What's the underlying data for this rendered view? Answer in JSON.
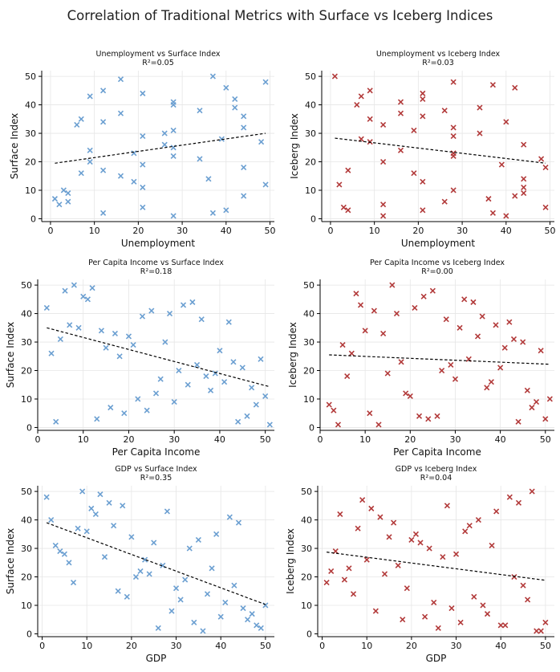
{
  "title": "Correlation of Traditional Metrics with Surface vs Iceberg Indices",
  "colors": {
    "surface": "#6b9fd1",
    "iceberg": "#b23a3a",
    "trend": "#000000",
    "grid": "#e6e6e6"
  },
  "chart_data": [
    {
      "type": "scatter",
      "title": "Unemployment vs Surface Index",
      "subtitle": "R²=0.05",
      "xlabel": "Unemployment",
      "ylabel": "Surface Index",
      "xlim": [
        -2,
        51
      ],
      "ylim": [
        -1,
        52
      ],
      "xticks": [
        0,
        10,
        20,
        30,
        40,
        50
      ],
      "yticks": [
        0,
        10,
        20,
        30,
        40,
        50
      ],
      "series_color": "surface",
      "trend": [
        [
          1,
          19.5
        ],
        [
          49,
          30
        ]
      ],
      "points": [
        [
          1,
          7
        ],
        [
          2,
          5
        ],
        [
          3,
          10
        ],
        [
          4,
          9
        ],
        [
          4,
          6
        ],
        [
          6,
          33
        ],
        [
          7,
          35
        ],
        [
          7,
          16
        ],
        [
          9,
          43
        ],
        [
          9,
          24
        ],
        [
          9,
          20
        ],
        [
          12,
          45
        ],
        [
          12,
          34
        ],
        [
          12,
          17
        ],
        [
          12,
          2
        ],
        [
          16,
          49
        ],
        [
          16,
          37
        ],
        [
          16,
          15
        ],
        [
          19,
          13
        ],
        [
          19,
          23
        ],
        [
          21,
          44
        ],
        [
          21,
          29
        ],
        [
          21,
          19
        ],
        [
          21,
          11
        ],
        [
          21,
          4
        ],
        [
          26,
          30
        ],
        [
          26,
          26
        ],
        [
          28,
          41
        ],
        [
          28,
          40
        ],
        [
          28,
          31
        ],
        [
          28,
          25
        ],
        [
          28,
          22
        ],
        [
          28,
          1
        ],
        [
          34,
          38
        ],
        [
          34,
          21
        ],
        [
          36,
          14
        ],
        [
          37,
          50
        ],
        [
          37,
          2
        ],
        [
          39,
          28
        ],
        [
          40,
          46
        ],
        [
          40,
          3
        ],
        [
          42,
          42
        ],
        [
          42,
          39
        ],
        [
          44,
          36
        ],
        [
          44,
          32
        ],
        [
          44,
          18
        ],
        [
          44,
          8
        ],
        [
          48,
          27
        ],
        [
          49,
          48
        ],
        [
          49,
          12
        ]
      ]
    },
    {
      "type": "scatter",
      "title": "Unemployment vs Iceberg Index",
      "subtitle": "R²=0.03",
      "xlabel": "Unemployment",
      "ylabel": "Iceberg Index",
      "xlim": [
        -2,
        51
      ],
      "ylim": [
        -1,
        52
      ],
      "xticks": [
        0,
        10,
        20,
        30,
        40,
        50
      ],
      "yticks": [
        0,
        10,
        20,
        30,
        40,
        50
      ],
      "series_color": "iceberg",
      "trend": [
        [
          1,
          28.3
        ],
        [
          49,
          19.5
        ]
      ],
      "points": [
        [
          1,
          50
        ],
        [
          2,
          12
        ],
        [
          3,
          4
        ],
        [
          4,
          3
        ],
        [
          4,
          17
        ],
        [
          6,
          40
        ],
        [
          7,
          43
        ],
        [
          7,
          28
        ],
        [
          9,
          45
        ],
        [
          9,
          35
        ],
        [
          9,
          27
        ],
        [
          12,
          33
        ],
        [
          12,
          20
        ],
        [
          12,
          5
        ],
        [
          12,
          1
        ],
        [
          16,
          41
        ],
        [
          16,
          37
        ],
        [
          16,
          24
        ],
        [
          19,
          31
        ],
        [
          19,
          16
        ],
        [
          21,
          44
        ],
        [
          21,
          42
        ],
        [
          21,
          36
        ],
        [
          21,
          13
        ],
        [
          21,
          3
        ],
        [
          26,
          38
        ],
        [
          26,
          6
        ],
        [
          28,
          48
        ],
        [
          28,
          32
        ],
        [
          28,
          29
        ],
        [
          28,
          23
        ],
        [
          28,
          22
        ],
        [
          28,
          10
        ],
        [
          34,
          39
        ],
        [
          34,
          30
        ],
        [
          36,
          7
        ],
        [
          37,
          47
        ],
        [
          37,
          2
        ],
        [
          39,
          19
        ],
        [
          40,
          34
        ],
        [
          40,
          1
        ],
        [
          42,
          46
        ],
        [
          42,
          8
        ],
        [
          44,
          26
        ],
        [
          44,
          14
        ],
        [
          44,
          11
        ],
        [
          44,
          9
        ],
        [
          48,
          21
        ],
        [
          49,
          18
        ],
        [
          49,
          4
        ]
      ]
    },
    {
      "type": "scatter",
      "title": "Per Capita Income vs Surface Index",
      "subtitle": "R²=0.18",
      "xlabel": "Per Capita Income",
      "ylabel": "Surface Index",
      "xlim": [
        0,
        52
      ],
      "ylim": [
        -1,
        52
      ],
      "xticks": [
        0,
        10,
        20,
        30,
        40,
        50
      ],
      "yticks": [
        0,
        10,
        20,
        30,
        40,
        50
      ],
      "series_color": "surface",
      "trend": [
        [
          2,
          35
        ],
        [
          51,
          14.3
        ]
      ],
      "points": [
        [
          2,
          42
        ],
        [
          3,
          26
        ],
        [
          4,
          2
        ],
        [
          5,
          31
        ],
        [
          6,
          48
        ],
        [
          7,
          36
        ],
        [
          8,
          50
        ],
        [
          9,
          35
        ],
        [
          10,
          46
        ],
        [
          11,
          45
        ],
        [
          12,
          49
        ],
        [
          13,
          3
        ],
        [
          14,
          34
        ],
        [
          15,
          28
        ],
        [
          16,
          7
        ],
        [
          17,
          33
        ],
        [
          18,
          25
        ],
        [
          19,
          5
        ],
        [
          20,
          32
        ],
        [
          21,
          29
        ],
        [
          22,
          10
        ],
        [
          23,
          39
        ],
        [
          24,
          6
        ],
        [
          25,
          41
        ],
        [
          26,
          12
        ],
        [
          27,
          17
        ],
        [
          28,
          30
        ],
        [
          29,
          40
        ],
        [
          30,
          9
        ],
        [
          31,
          20
        ],
        [
          32,
          43
        ],
        [
          33,
          15
        ],
        [
          34,
          44
        ],
        [
          35,
          22
        ],
        [
          36,
          38
        ],
        [
          37,
          18
        ],
        [
          38,
          13
        ],
        [
          39,
          19
        ],
        [
          40,
          27
        ],
        [
          41,
          16
        ],
        [
          42,
          37
        ],
        [
          43,
          23
        ],
        [
          44,
          2
        ],
        [
          45,
          21
        ],
        [
          46,
          4
        ],
        [
          47,
          14
        ],
        [
          48,
          8
        ],
        [
          49,
          24
        ],
        [
          50,
          11
        ],
        [
          51,
          1
        ]
      ]
    },
    {
      "type": "scatter",
      "title": "Per Capita Income vs Iceberg Index",
      "subtitle": "R²=0.00",
      "xlabel": "Per Capita Income",
      "ylabel": "Iceberg Index",
      "xlim": [
        0,
        52
      ],
      "ylim": [
        -1,
        52
      ],
      "xticks": [
        0,
        10,
        20,
        30,
        40,
        50
      ],
      "yticks": [
        0,
        10,
        20,
        30,
        40,
        50
      ],
      "series_color": "iceberg",
      "trend": [
        [
          2,
          25.5
        ],
        [
          51,
          22.2
        ]
      ],
      "points": [
        [
          2,
          8
        ],
        [
          3,
          6
        ],
        [
          4,
          1
        ],
        [
          5,
          29
        ],
        [
          6,
          18
        ],
        [
          7,
          26
        ],
        [
          8,
          47
        ],
        [
          9,
          43
        ],
        [
          10,
          34
        ],
        [
          11,
          5
        ],
        [
          12,
          41
        ],
        [
          13,
          1
        ],
        [
          14,
          33
        ],
        [
          15,
          19
        ],
        [
          16,
          50
        ],
        [
          17,
          40
        ],
        [
          18,
          23
        ],
        [
          19,
          12
        ],
        [
          20,
          11
        ],
        [
          21,
          42
        ],
        [
          22,
          4
        ],
        [
          23,
          46
        ],
        [
          24,
          3
        ],
        [
          25,
          48
        ],
        [
          26,
          4
        ],
        [
          27,
          20
        ],
        [
          28,
          38
        ],
        [
          29,
          22
        ],
        [
          30,
          17
        ],
        [
          31,
          35
        ],
        [
          32,
          45
        ],
        [
          33,
          24
        ],
        [
          34,
          44
        ],
        [
          35,
          32
        ],
        [
          36,
          39
        ],
        [
          37,
          14
        ],
        [
          38,
          16
        ],
        [
          39,
          36
        ],
        [
          40,
          21
        ],
        [
          41,
          28
        ],
        [
          42,
          37
        ],
        [
          43,
          31
        ],
        [
          44,
          2
        ],
        [
          45,
          30
        ],
        [
          46,
          13
        ],
        [
          47,
          7
        ],
        [
          48,
          9
        ],
        [
          49,
          27
        ],
        [
          50,
          3
        ],
        [
          51,
          10
        ]
      ]
    },
    {
      "type": "scatter",
      "title": "GDP vs Surface Index",
      "subtitle": "R²=0.35",
      "xlabel": "GDP",
      "ylabel": "Surface Index",
      "xlim": [
        -1,
        52
      ],
      "ylim": [
        -1,
        52
      ],
      "xticks": [
        0,
        10,
        20,
        30,
        40,
        50
      ],
      "yticks": [
        0,
        10,
        20,
        30,
        40,
        50
      ],
      "series_color": "surface",
      "trend": [
        [
          1,
          39
        ],
        [
          50,
          10.3
        ]
      ],
      "points": [
        [
          1,
          48
        ],
        [
          2,
          40
        ],
        [
          3,
          31
        ],
        [
          4,
          29
        ],
        [
          5,
          28
        ],
        [
          6,
          25
        ],
        [
          7,
          18
        ],
        [
          8,
          37
        ],
        [
          9,
          50
        ],
        [
          10,
          36
        ],
        [
          11,
          44
        ],
        [
          12,
          42
        ],
        [
          13,
          49
        ],
        [
          14,
          27
        ],
        [
          15,
          46
        ],
        [
          16,
          38
        ],
        [
          17,
          15
        ],
        [
          18,
          45
        ],
        [
          19,
          13
        ],
        [
          20,
          34
        ],
        [
          21,
          20
        ],
        [
          22,
          22
        ],
        [
          23,
          26
        ],
        [
          24,
          21
        ],
        [
          25,
          32
        ],
        [
          26,
          2
        ],
        [
          27,
          24
        ],
        [
          28,
          43
        ],
        [
          29,
          8
        ],
        [
          30,
          16
        ],
        [
          31,
          12
        ],
        [
          32,
          19
        ],
        [
          33,
          30
        ],
        [
          34,
          4
        ],
        [
          35,
          33
        ],
        [
          36,
          1
        ],
        [
          37,
          14
        ],
        [
          38,
          23
        ],
        [
          39,
          35
        ],
        [
          40,
          6
        ],
        [
          41,
          11
        ],
        [
          42,
          41
        ],
        [
          43,
          17
        ],
        [
          44,
          39
        ],
        [
          45,
          9
        ],
        [
          46,
          5
        ],
        [
          47,
          7
        ],
        [
          48,
          3
        ],
        [
          49,
          2
        ],
        [
          50,
          10
        ]
      ]
    },
    {
      "type": "scatter",
      "title": "GDP vs Iceberg Index",
      "subtitle": "R²=0.04",
      "xlabel": "GDP",
      "ylabel": "Iceberg Index",
      "xlim": [
        -1,
        52
      ],
      "ylim": [
        -1,
        52
      ],
      "xticks": [
        0,
        10,
        20,
        30,
        40,
        50
      ],
      "yticks": [
        0,
        10,
        20,
        30,
        40,
        50
      ],
      "series_color": "iceberg",
      "trend": [
        [
          1,
          28.7
        ],
        [
          50,
          18.8
        ]
      ],
      "points": [
        [
          1,
          18
        ],
        [
          2,
          22
        ],
        [
          3,
          29
        ],
        [
          4,
          42
        ],
        [
          5,
          19
        ],
        [
          6,
          23
        ],
        [
          7,
          14
        ],
        [
          8,
          37
        ],
        [
          9,
          47
        ],
        [
          10,
          26
        ],
        [
          11,
          44
        ],
        [
          12,
          8
        ],
        [
          13,
          41
        ],
        [
          14,
          21
        ],
        [
          15,
          34
        ],
        [
          16,
          39
        ],
        [
          17,
          24
        ],
        [
          18,
          5
        ],
        [
          19,
          16
        ],
        [
          20,
          33
        ],
        [
          21,
          35
        ],
        [
          22,
          32
        ],
        [
          23,
          6
        ],
        [
          24,
          30
        ],
        [
          25,
          11
        ],
        [
          26,
          2
        ],
        [
          27,
          27
        ],
        [
          28,
          45
        ],
        [
          29,
          9
        ],
        [
          30,
          28
        ],
        [
          31,
          4
        ],
        [
          32,
          36
        ],
        [
          33,
          38
        ],
        [
          34,
          13
        ],
        [
          35,
          40
        ],
        [
          36,
          10
        ],
        [
          37,
          7
        ],
        [
          38,
          31
        ],
        [
          39,
          43
        ],
        [
          40,
          3
        ],
        [
          41,
          3
        ],
        [
          42,
          48
        ],
        [
          43,
          20
        ],
        [
          44,
          46
        ],
        [
          45,
          17
        ],
        [
          46,
          12
        ],
        [
          47,
          50
        ],
        [
          48,
          1
        ],
        [
          49,
          1
        ],
        [
          50,
          4
        ]
      ]
    }
  ]
}
